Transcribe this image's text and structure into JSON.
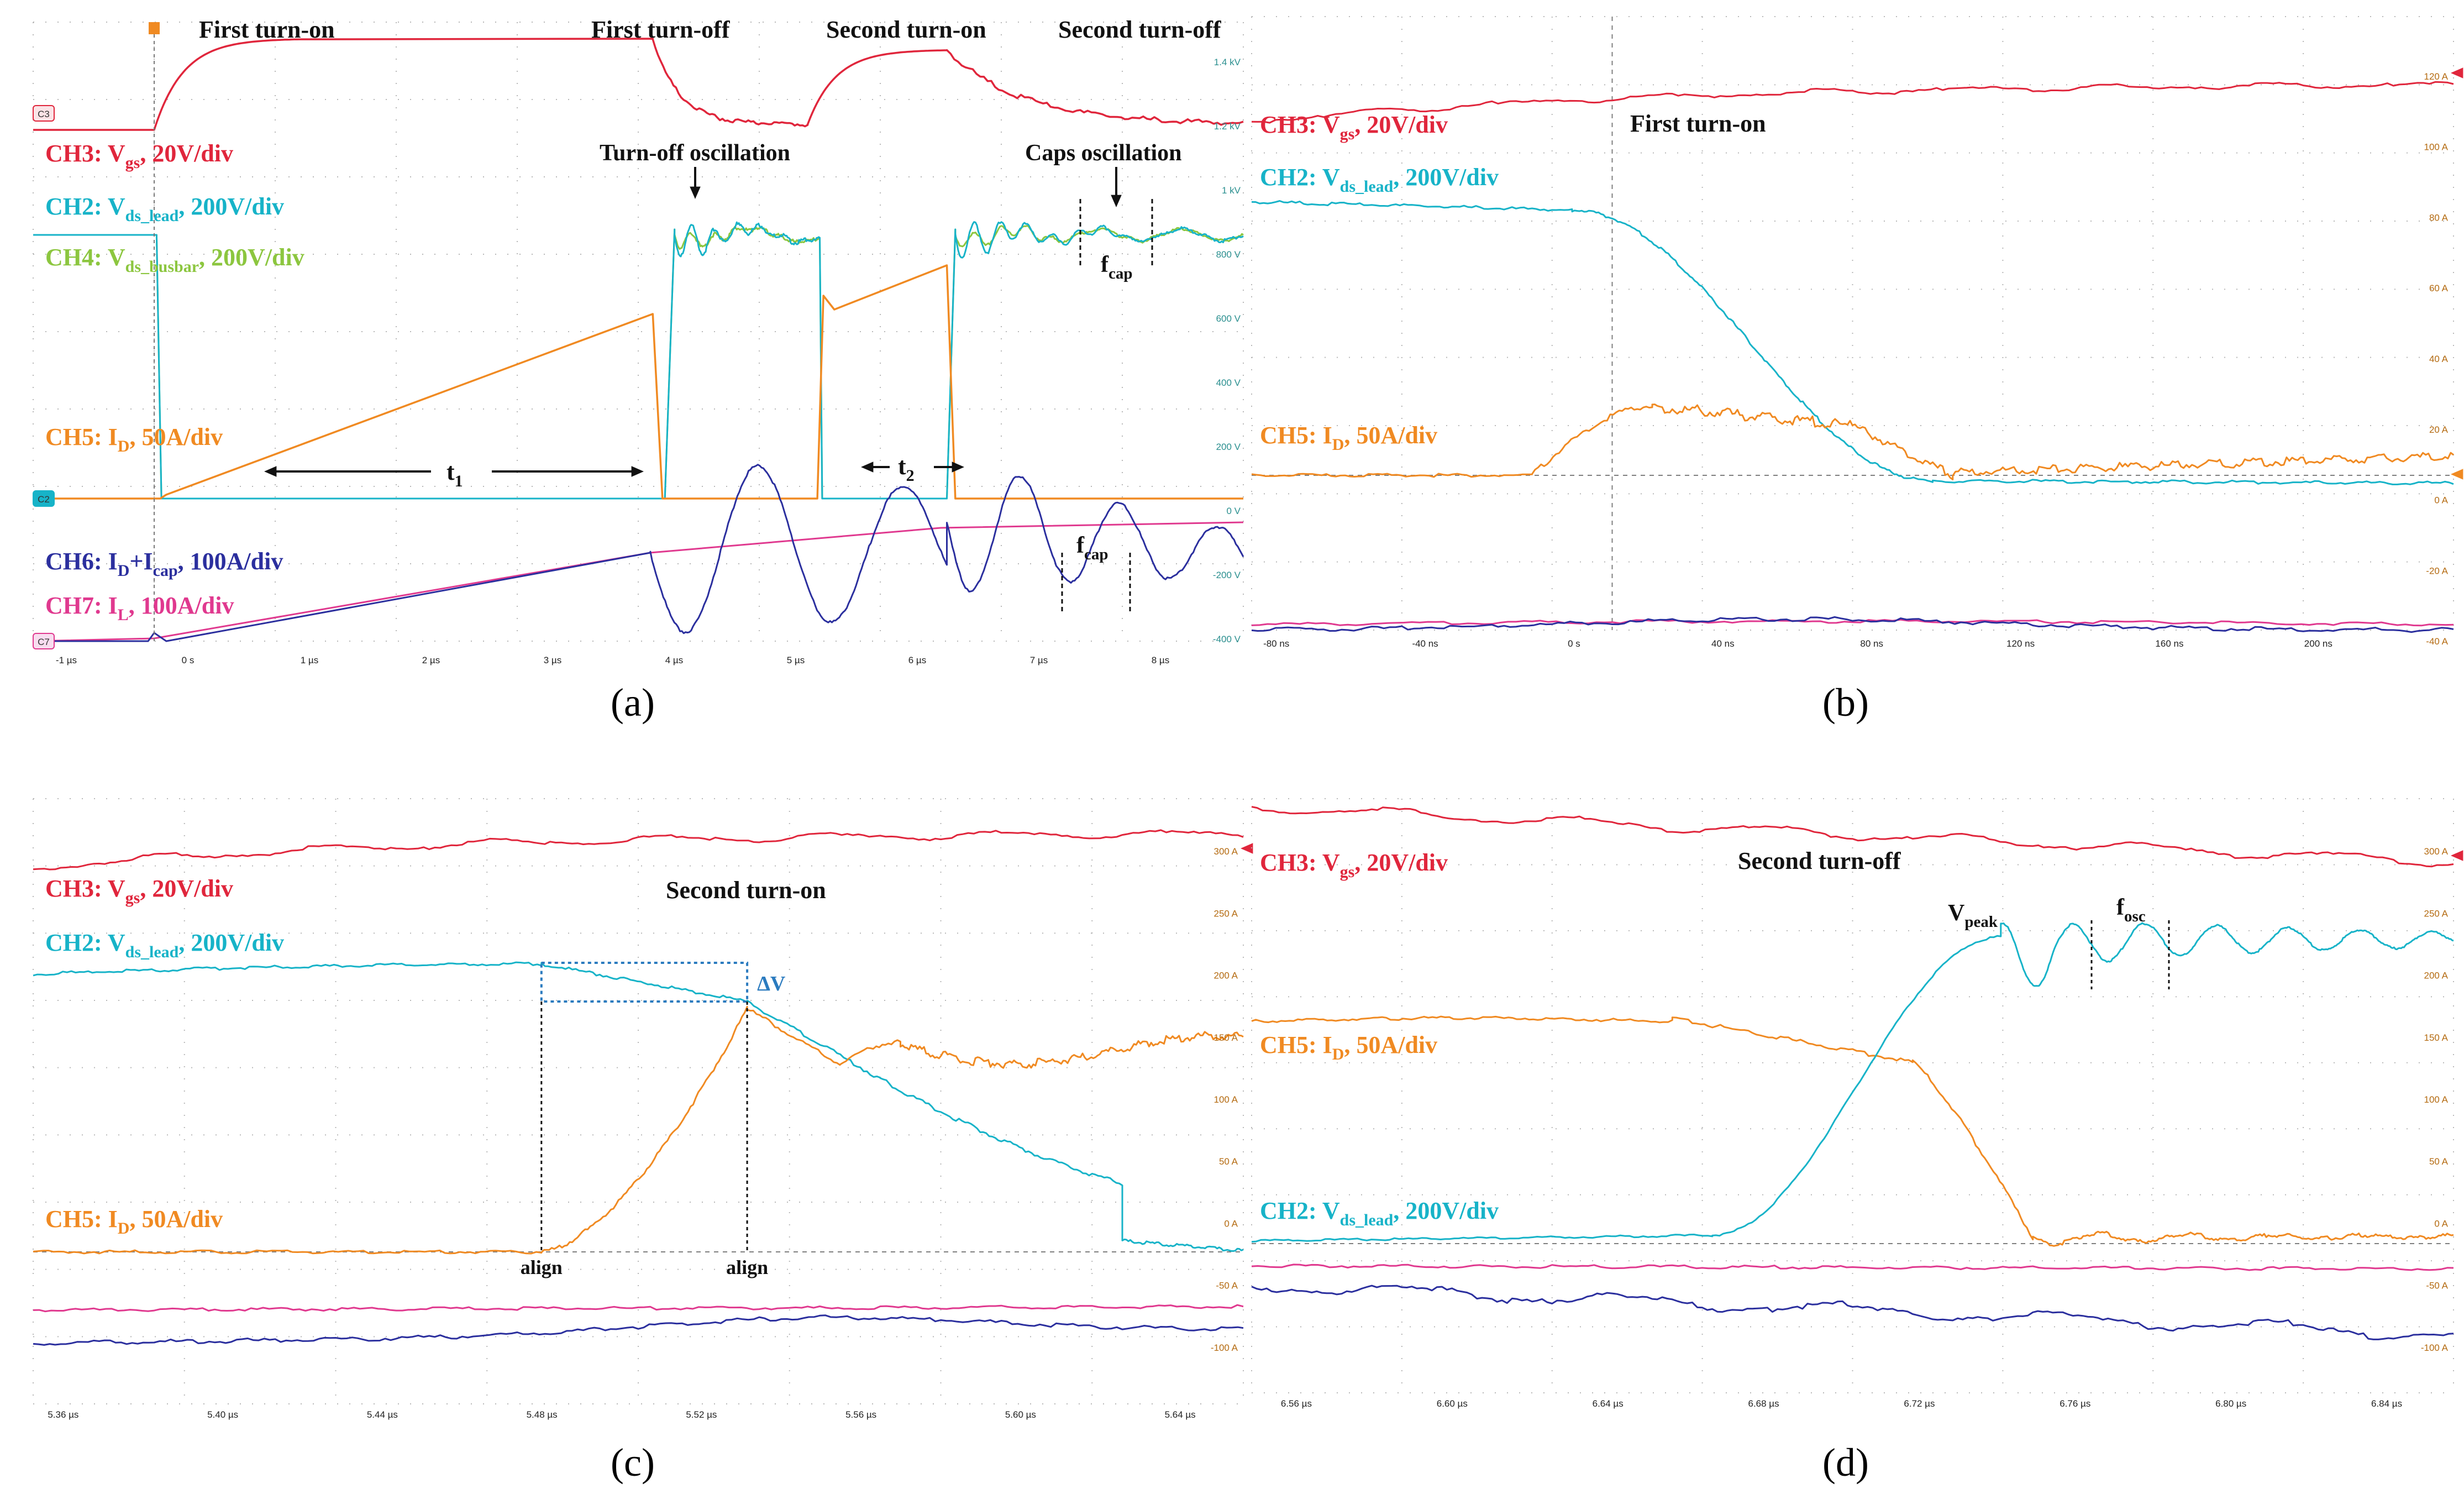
{
  "colors": {
    "vgs": "#e0263c",
    "vds_lead": "#17b3c8",
    "vds_busbar": "#8cc63f",
    "id": "#f08a22",
    "id_cap": "#2b2f9e",
    "il": "#e0398f",
    "grid": "#b7b7b7",
    "ref": "#7f7f7f",
    "box": "#2b7bbf",
    "annot": "#111111"
  },
  "panels": {
    "a": {
      "caption": "(a)",
      "x_ticks": [
        "-1 µs",
        "0 s",
        "1 µs",
        "2 µs",
        "3 µs",
        "4 µs",
        "5 µs",
        "6 µs",
        "7 µs",
        "8 µs"
      ],
      "right_ticks": [
        "1.4 kV",
        "1.2 kV",
        "1 kV",
        "800 V",
        "600 V",
        "400 V",
        "200 V",
        "0 V",
        "-200 V",
        "-400 V"
      ],
      "channel_markers": [
        "C3",
        "C2",
        "C7"
      ],
      "top_labels": [
        "First turn-on",
        "First turn-off",
        "Second turn-on",
        "Second turn-off"
      ],
      "oscillation_labels": [
        "Turn-off oscillation",
        "Caps oscillation"
      ],
      "legend": [
        {
          "ch": "CH3: V",
          "sub": "gs",
          "rest": ", 20V/div"
        },
        {
          "ch": "CH2: V",
          "sub": "ds_lead",
          "rest": ", 200V/div"
        },
        {
          "ch": "CH4: V",
          "sub": "ds_busbar",
          "rest": ", 200V/div"
        },
        {
          "ch": "CH5: I",
          "sub": "D",
          "rest": ", 50A/div"
        },
        {
          "ch": "CH6: I",
          "sub": "D",
          "mid": "+I",
          "sub2": "cap",
          "rest": ", 100A/div"
        },
        {
          "ch": "CH7: I",
          "sub": "L",
          "rest": ", 100A/div"
        }
      ],
      "t1": {
        "main": "t",
        "sub": "1"
      },
      "t2": {
        "main": "t",
        "sub": "2"
      },
      "fcap": {
        "main": "f",
        "sub": "cap"
      }
    },
    "b": {
      "caption": "(b)",
      "title": "First turn-on",
      "x_ticks": [
        "-80 ns",
        "-40 ns",
        "0 s",
        "40 ns",
        "80 ns",
        "120 ns",
        "160 ns",
        "200 ns"
      ],
      "right_ticks": [
        "120 A",
        "100 A",
        "80 A",
        "60 A",
        "40 A",
        "20 A",
        "0 A",
        "-20 A",
        "-40 A"
      ],
      "legend": [
        {
          "ch": "CH3: V",
          "sub": "gs",
          "rest": ", 20V/div"
        },
        {
          "ch": "CH2: V",
          "sub": "ds_lead",
          "rest": ", 200V/div"
        },
        {
          "ch": "CH5: I",
          "sub": "D",
          "rest": ", 50A/div"
        }
      ]
    },
    "c": {
      "caption": "(c)",
      "title": "Second turn-on",
      "x_ticks": [
        "5.36 µs",
        "5.40 µs",
        "5.44 µs",
        "5.48 µs",
        "5.52 µs",
        "5.56 µs",
        "5.60 µs",
        "5.64 µs"
      ],
      "right_ticks": [
        "300 A",
        "250 A",
        "200 A",
        "150 A",
        "100 A",
        "50 A",
        "0 A",
        "-50 A",
        "-100 A"
      ],
      "legend": [
        {
          "ch": "CH3: V",
          "sub": "gs",
          "rest": ", 20V/div"
        },
        {
          "ch": "CH2: V",
          "sub": "ds_lead",
          "rest": ", 200V/div"
        },
        {
          "ch": "CH5: I",
          "sub": "D",
          "rest": ", 50A/div"
        }
      ],
      "delta_v": "ΔV",
      "align": "align"
    },
    "d": {
      "caption": "(d)",
      "title": "Second turn-off",
      "x_ticks": [
        "6.56 µs",
        "6.60 µs",
        "6.64 µs",
        "6.68 µs",
        "6.72 µs",
        "6.76 µs",
        "6.80 µs",
        "6.84 µs"
      ],
      "right_ticks": [
        "300 A",
        "250 A",
        "200 A",
        "150 A",
        "100 A",
        "50 A",
        "0 A",
        "-50 A",
        "-100 A"
      ],
      "legend": [
        {
          "ch": "CH3: V",
          "sub": "gs",
          "rest": ", 20V/div"
        },
        {
          "ch": "CH5: I",
          "sub": "D",
          "rest": ", 50A/div"
        },
        {
          "ch": "CH2: V",
          "sub": "ds_lead",
          "rest": ", 200V/div"
        }
      ],
      "vpeak": {
        "main": "V",
        "sub": "peak"
      },
      "fosc": {
        "main": "f",
        "sub": "osc"
      }
    }
  },
  "chart_data": [
    {
      "type": "line",
      "panel": "a",
      "x_unit": "µs",
      "xlim": [
        -1,
        9
      ],
      "events": [
        "First turn-on",
        "First turn-off",
        "Second turn-on",
        "Second turn-off"
      ],
      "series": [
        {
          "name": "CH3: Vgs, 20V/div",
          "x": [
            -1,
            -0.05,
            0,
            0.1,
            0.5,
            1,
            4.1,
            4.4,
            5.0,
            5.4,
            5.5,
            5.7,
            6.5,
            6.6,
            6.9,
            9
          ],
          "y": [
            0,
            0,
            0.3,
            0.7,
            0.93,
            1,
            1,
            0.3,
            0.08,
            0.1,
            0.35,
            0.8,
            0.92,
            0.6,
            0.15,
            0.12
          ]
        },
        {
          "name": "CH2: Vds_lead, 200V/div",
          "x": [
            -1,
            0.02,
            0.1,
            4.2,
            4.3,
            5.5,
            5.55,
            6.6,
            6.65,
            9
          ],
          "y": [
            800,
            800,
            0,
            0,
            850,
            800,
            0,
            0,
            850,
            800
          ]
        },
        {
          "name": "CH5: ID, 50A/div",
          "x": [
            -1,
            0,
            4.15,
            4.25,
            5.5,
            5.6,
            6.6,
            6.7,
            9
          ],
          "y": [
            0,
            0,
            100,
            0,
            0,
            90,
            120,
            0,
            0
          ]
        },
        {
          "name": "CH6: ID+Icap, 100A/div",
          "x": [
            -1,
            0,
            4.1,
            4.5,
            5.0,
            5.5,
            6.0,
            6.5,
            7.0,
            9
          ],
          "y": [
            0,
            0,
            100,
            -90,
            60,
            -40,
            130,
            120,
            -60,
            0
          ]
        },
        {
          "name": "CH7: IL, 100A/div",
          "x": [
            -1,
            0,
            4.1,
            9
          ],
          "y": [
            0,
            0,
            100,
            115
          ]
        }
      ]
    },
    {
      "type": "line",
      "panel": "b",
      "x_unit": "ns",
      "xlim": [
        -90,
        210
      ],
      "series": [
        {
          "name": "CH3: Vgs, 20V/div",
          "x": [
            -90,
            0,
            100,
            210
          ],
          "y": [
            0.85,
            0.92,
            0.96,
            0.98
          ]
        },
        {
          "name": "CH2: Vds_lead, 200V/div",
          "x": [
            -90,
            -10,
            20,
            50,
            80,
            210
          ],
          "y": [
            800,
            790,
            700,
            300,
            20,
            0
          ]
        },
        {
          "name": "CH5: ID, 50A/div",
          "x": [
            -90,
            -10,
            10,
            40,
            60,
            80,
            210
          ],
          "y": [
            0,
            5,
            20,
            18,
            12,
            0,
            8
          ]
        }
      ]
    },
    {
      "type": "line",
      "panel": "c",
      "x_unit": "µs",
      "xlim": [
        5.35,
        5.65
      ],
      "series": [
        {
          "name": "CH3: Vgs, 20V/div",
          "x": [
            5.35,
            5.45,
            5.55,
            5.65
          ],
          "y": [
            0.85,
            0.93,
            0.96,
            0.97
          ]
        },
        {
          "name": "CH2: Vds_lead, 200V/div",
          "x": [
            5.35,
            5.476,
            5.527,
            5.56,
            5.6,
            5.64
          ],
          "y": [
            213,
            213,
            188,
            110,
            25,
            0
          ]
        },
        {
          "name": "CH5: ID, 50A/div",
          "x": [
            5.35,
            5.476,
            5.5,
            5.527,
            5.55,
            5.56,
            5.64
          ],
          "y": [
            0,
            0,
            65,
            185,
            140,
            160,
            145
          ]
        }
      ]
    },
    {
      "type": "line",
      "panel": "d",
      "x_unit": "µs",
      "xlim": [
        6.555,
        6.855
      ],
      "series": [
        {
          "name": "CH3: Vgs, 20V/div",
          "x": [
            6.555,
            6.65,
            6.75,
            6.855
          ],
          "y": [
            0.97,
            0.93,
            0.9,
            0.88
          ]
        },
        {
          "name": "CH5: ID, 50A/div",
          "x": [
            6.555,
            6.66,
            6.72,
            6.75,
            6.855
          ],
          "y": [
            175,
            175,
            150,
            10,
            5
          ]
        },
        {
          "name": "CH2: Vds_lead, 200V/div",
          "x": [
            6.555,
            6.67,
            6.74,
            6.765,
            6.78,
            6.855
          ],
          "y": [
            5,
            10,
            235,
            200,
            230,
            220
          ]
        }
      ]
    }
  ]
}
